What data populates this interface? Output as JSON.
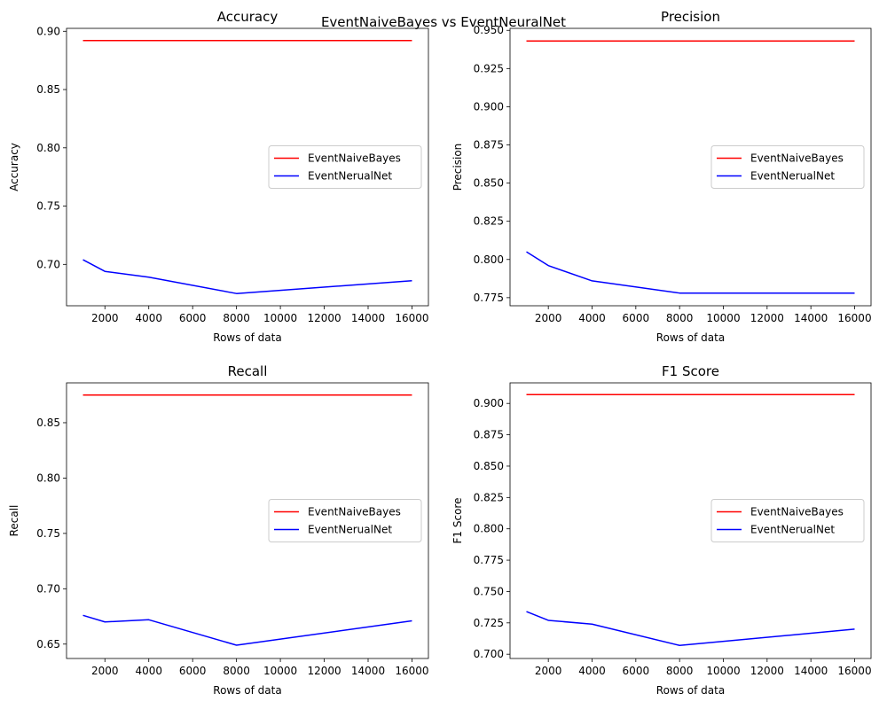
{
  "figure": {
    "suptitle": "EventNaiveBayes vs EventNeuralNet"
  },
  "chart_data": [
    {
      "type": "line",
      "title": "Accuracy",
      "xlabel": "Rows of data",
      "ylabel": "Accuracy",
      "xlim": [
        250,
        16750
      ],
      "ylim": [
        0.6645,
        0.9025
      ],
      "xticks": [
        2000,
        4000,
        6000,
        8000,
        10000,
        12000,
        14000,
        16000
      ],
      "yticks": [
        0.7,
        0.75,
        0.8,
        0.85,
        0.9
      ],
      "ytick_labels": [
        "0.70",
        "0.75",
        "0.80",
        "0.85",
        "0.90"
      ],
      "legend": "center-right",
      "series": [
        {
          "name": "EventNaiveBayes",
          "color": "#ff0000",
          "x": [
            1000,
            2000,
            4000,
            8000,
            16000
          ],
          "y": [
            0.892,
            0.892,
            0.892,
            0.892,
            0.892
          ]
        },
        {
          "name": "EventNerualNet",
          "color": "#0000ff",
          "x": [
            1000,
            2000,
            4000,
            8000,
            16000
          ],
          "y": [
            0.704,
            0.694,
            0.689,
            0.675,
            0.686
          ]
        }
      ]
    },
    {
      "type": "line",
      "title": "Precision",
      "xlabel": "Rows of data",
      "ylabel": "Precision",
      "xlim": [
        250,
        16750
      ],
      "ylim": [
        0.7697,
        0.9513
      ],
      "xticks": [
        2000,
        4000,
        6000,
        8000,
        10000,
        12000,
        14000,
        16000
      ],
      "yticks": [
        0.775,
        0.8,
        0.825,
        0.85,
        0.875,
        0.9,
        0.925,
        0.95
      ],
      "ytick_labels": [
        "0.775",
        "0.800",
        "0.825",
        "0.850",
        "0.875",
        "0.900",
        "0.925",
        "0.950"
      ],
      "legend": "center-right",
      "series": [
        {
          "name": "EventNaiveBayes",
          "color": "#ff0000",
          "x": [
            1000,
            2000,
            4000,
            8000,
            16000
          ],
          "y": [
            0.943,
            0.943,
            0.943,
            0.943,
            0.943
          ]
        },
        {
          "name": "EventNerualNet",
          "color": "#0000ff",
          "x": [
            1000,
            2000,
            4000,
            8000,
            16000
          ],
          "y": [
            0.805,
            0.796,
            0.786,
            0.778,
            0.778
          ]
        }
      ]
    },
    {
      "type": "line",
      "title": "Recall",
      "xlabel": "Rows of data",
      "ylabel": "Recall",
      "xlim": [
        250,
        16750
      ],
      "ylim": [
        0.637,
        0.886
      ],
      "xticks": [
        2000,
        4000,
        6000,
        8000,
        10000,
        12000,
        14000,
        16000
      ],
      "yticks": [
        0.65,
        0.7,
        0.75,
        0.8,
        0.85
      ],
      "ytick_labels": [
        "0.65",
        "0.70",
        "0.75",
        "0.80",
        "0.85"
      ],
      "legend": "center-right",
      "series": [
        {
          "name": "EventNaiveBayes",
          "color": "#ff0000",
          "x": [
            1000,
            2000,
            4000,
            8000,
            16000
          ],
          "y": [
            0.875,
            0.875,
            0.875,
            0.875,
            0.875
          ]
        },
        {
          "name": "EventNerualNet",
          "color": "#0000ff",
          "x": [
            1000,
            2000,
            4000,
            8000,
            16000
          ],
          "y": [
            0.676,
            0.67,
            0.672,
            0.649,
            0.671
          ]
        }
      ]
    },
    {
      "type": "line",
      "title": "F1 Score",
      "xlabel": "Rows of data",
      "ylabel": "F1 Score",
      "xlim": [
        250,
        16750
      ],
      "ylim": [
        0.6966,
        0.9164
      ],
      "xticks": [
        2000,
        4000,
        6000,
        8000,
        10000,
        12000,
        14000,
        16000
      ],
      "yticks": [
        0.7,
        0.725,
        0.75,
        0.775,
        0.8,
        0.825,
        0.85,
        0.875,
        0.9
      ],
      "ytick_labels": [
        "0.700",
        "0.725",
        "0.750",
        "0.775",
        "0.800",
        "0.825",
        "0.850",
        "0.875",
        "0.900"
      ],
      "legend": "center-right",
      "series": [
        {
          "name": "EventNaiveBayes",
          "color": "#ff0000",
          "x": [
            1000,
            2000,
            4000,
            8000,
            16000
          ],
          "y": [
            0.907,
            0.907,
            0.907,
            0.907,
            0.907
          ]
        },
        {
          "name": "EventNerualNet",
          "color": "#0000ff",
          "x": [
            1000,
            2000,
            4000,
            8000,
            16000
          ],
          "y": [
            0.734,
            0.727,
            0.724,
            0.707,
            0.72
          ]
        }
      ]
    }
  ]
}
